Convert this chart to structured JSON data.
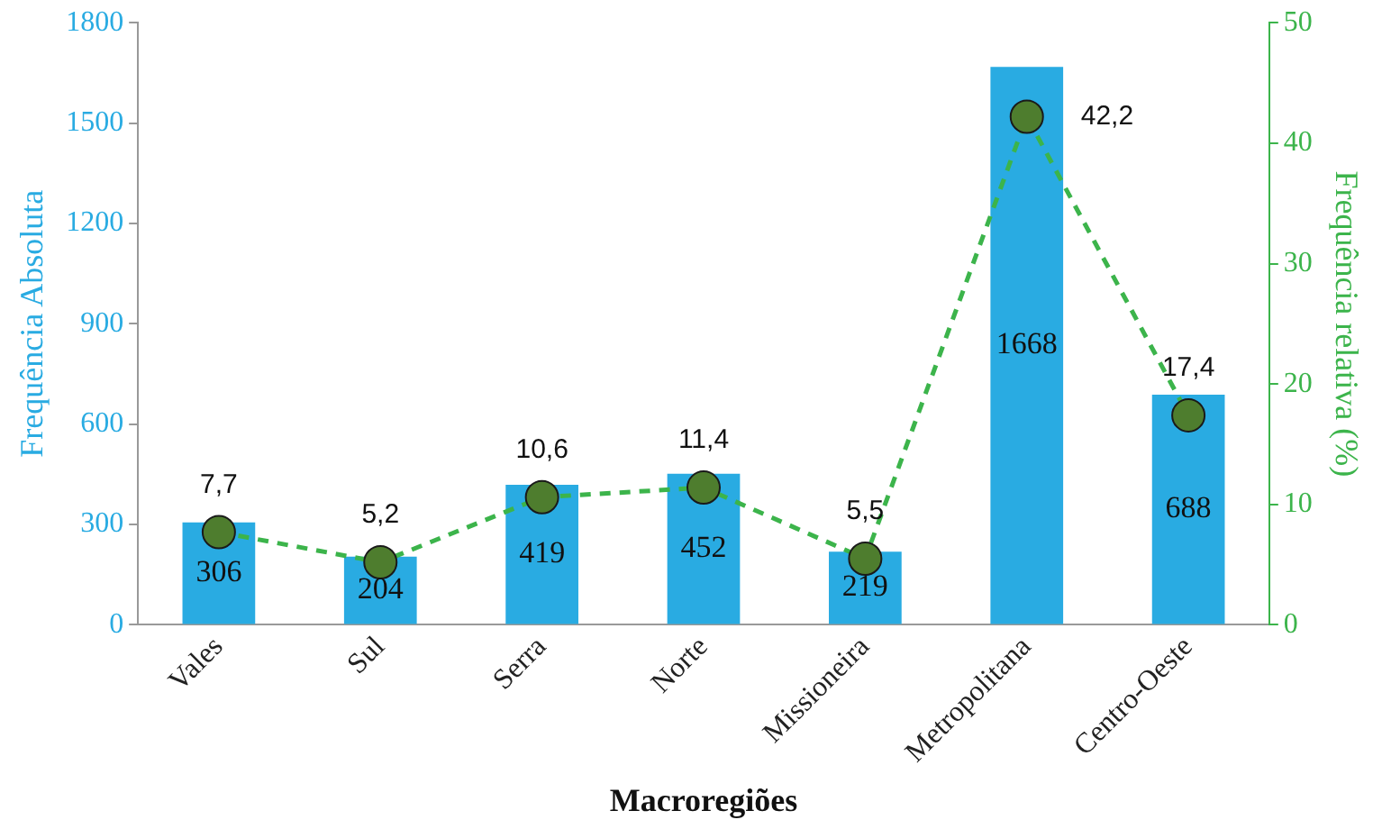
{
  "chart_data": {
    "type": "bar",
    "xlabel": "Macroregiões",
    "ylabel": "Frequência Absoluta",
    "y2label": "Frequência relativa (%)",
    "categories": [
      "Vales",
      "Sul",
      "Serra",
      "Norte",
      "Missioneira",
      "Metropolitana",
      "Centro-Oeste"
    ],
    "series": [
      {
        "color": "#29abe2",
        "values": [
          306,
          204,
          419,
          452,
          219,
          1668,
          688
        ],
        "value_labels": [
          "306",
          "204",
          "419",
          "452",
          "219",
          "1668",
          "688"
        ]
      },
      {
        "type": "line",
        "axis": "y2",
        "color": "#3cb44b",
        "marker": "circle",
        "line_style": "dashed",
        "values": [
          7.7,
          5.2,
          10.6,
          11.4,
          5.5,
          42.2,
          17.4
        ],
        "value_labels": [
          "7,7",
          "5,2",
          "10,6",
          "11,4",
          "5,5",
          "42,2",
          "17,4"
        ]
      }
    ],
    "ylim": [
      0,
      1800
    ],
    "yticks": [
      0,
      300,
      600,
      900,
      1200,
      1500,
      1800
    ],
    "y2lim": [
      0,
      50
    ],
    "y2ticks": [
      0,
      10,
      20,
      30,
      40,
      50
    ],
    "grid": false,
    "legend": false
  }
}
